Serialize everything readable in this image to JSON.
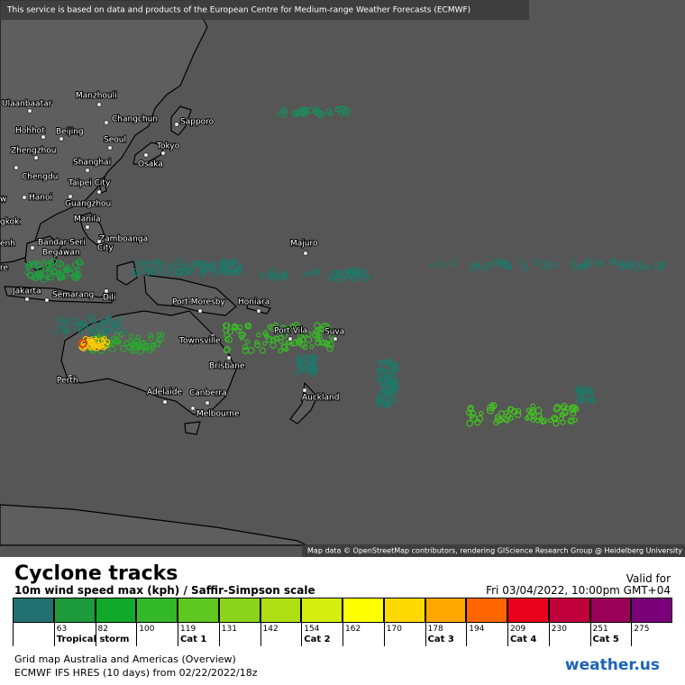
{
  "header": {
    "notice": "This service is based on data and products of the European Centre for Medium-range Weather Forecasts (ECMWF)"
  },
  "map": {
    "cities": [
      "Ulaanbaatar",
      "Manzhouli",
      "Changchun",
      "Sapporo",
      "Hohhot",
      "Beijing",
      "Seoul",
      "Tokyo",
      "Zhengzhou",
      "Shanghai",
      "Osaka",
      "Chengdu",
      "Taipei City",
      "w",
      "Hanoi",
      "Guangzhou",
      "gkok",
      "Manila",
      "Zamboanga",
      "City",
      "enh",
      "Bandar Seri",
      "Begawan",
      "re",
      "Majuro",
      "Jakarta",
      "Semarang",
      "Dili",
      "Port Moresby",
      "Honiara",
      "Port Vila",
      "Suva",
      "Townsville",
      "Brisbane",
      "Perth",
      "Adelaide",
      "Canberra",
      "Melbourne",
      "Auckland"
    ],
    "attribution": "Map data © OpenStreetMap contributors, rendering GIScience Research Group @ Heidelberg University"
  },
  "legend": {
    "title": "Cyclone tracks",
    "subtitle": "10m wind speed max (kph) / Saffir-Simpson scale",
    "valid_label": "Valid for",
    "valid_date": "Fri 03/04/2022, 10:00pm GMT+04",
    "colors": [
      "#21706f",
      "#1c9a3c",
      "#12a82c",
      "#33b82a",
      "#5fc820",
      "#8ad51c",
      "#b0e014",
      "#d4ee10",
      "#ffff00",
      "#ffd800",
      "#ffa800",
      "#ff6600",
      "#e8001c",
      "#c0003a",
      "#9a0058",
      "#7a007a"
    ],
    "ticks": [
      63,
      82,
      100,
      119,
      131,
      142,
      154,
      162,
      170,
      178,
      194,
      209,
      230,
      251,
      275
    ],
    "categories": [
      "Tropical storm",
      "Cat 1",
      "Cat 2",
      "Cat 3",
      "Cat 4",
      "Cat 5"
    ]
  },
  "footer": {
    "line1": "Grid map Australia and Americas (Overview)",
    "line2": "ECMWF IFS HRES (10 days) from 02/22/2022/18z",
    "logo": "weather.us"
  }
}
